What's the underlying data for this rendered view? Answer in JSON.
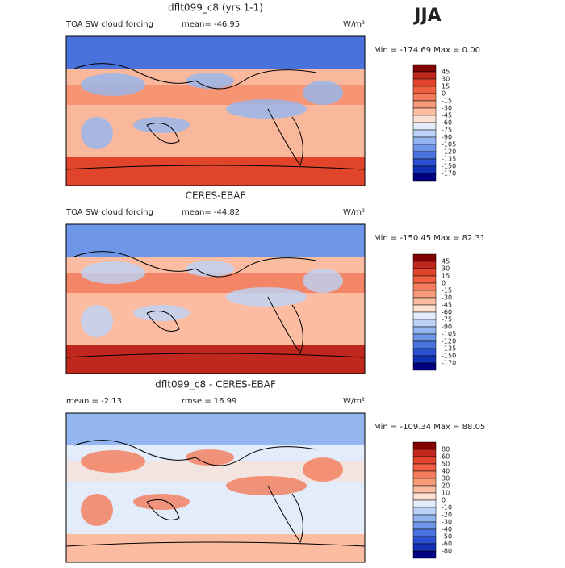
{
  "title": "JJA",
  "panels": [
    {
      "title": "dflt099_c8 (yrs 1-1)",
      "left_label": "TOA SW cloud forcing",
      "center_label": "mean= -46.95",
      "units": "W/m²",
      "stats": "Min = -174.69 Max =    0.00",
      "colorbar": {
        "labels": [
          "45",
          "30",
          "15",
          "0",
          "-15",
          "-30",
          "-45",
          "-60",
          "-75",
          "-90",
          "-105",
          "-120",
          "-135",
          "-150",
          "-170"
        ],
        "colors": [
          "#800000",
          "#c0281e",
          "#e0452c",
          "#f06040",
          "#f47c5a",
          "#f79a7a",
          "#fbbca2",
          "#fde0cf",
          "#e2ecfb",
          "#bcd3f7",
          "#94b6f0",
          "#6d95e8",
          "#4a72dc",
          "#2a4fcf",
          "#1230b4",
          "#000080"
        ]
      }
    },
    {
      "title": "CERES-EBAF",
      "left_label": "TOA SW cloud forcing",
      "center_label": "mean= -44.82",
      "units": "W/m²",
      "stats": "Min = -150.45 Max =  82.31",
      "colorbar": {
        "labels": [
          "45",
          "30",
          "15",
          "0",
          "-15",
          "-30",
          "-45",
          "-60",
          "-75",
          "-90",
          "-105",
          "-120",
          "-135",
          "-150",
          "-170"
        ],
        "colors": [
          "#800000",
          "#c0281e",
          "#e0452c",
          "#f06040",
          "#f47c5a",
          "#f79a7a",
          "#fbbca2",
          "#fde0cf",
          "#e2ecfb",
          "#bcd3f7",
          "#94b6f0",
          "#6d95e8",
          "#4a72dc",
          "#2a4fcf",
          "#1230b4",
          "#000080"
        ]
      }
    },
    {
      "title": "dflt099_c8 - CERES-EBAF",
      "left_label": "mean =   -2.13",
      "center_label": "rmse =   16.99",
      "units": "W/m²",
      "stats": "Min = -109.34 Max =  88.05",
      "colorbar": {
        "labels": [
          "80",
          "60",
          "50",
          "40",
          "30",
          "20",
          "10",
          "0",
          "-10",
          "-20",
          "-30",
          "-40",
          "-50",
          "-60",
          "-80"
        ],
        "colors": [
          "#800000",
          "#c0281e",
          "#e0452c",
          "#f06040",
          "#f47c5a",
          "#f79a7a",
          "#fbbca2",
          "#fde0cf",
          "#e2ecfb",
          "#bcd3f7",
          "#94b6f0",
          "#6d95e8",
          "#4a72dc",
          "#2a4fcf",
          "#1230b4",
          "#000080"
        ]
      }
    }
  ]
}
